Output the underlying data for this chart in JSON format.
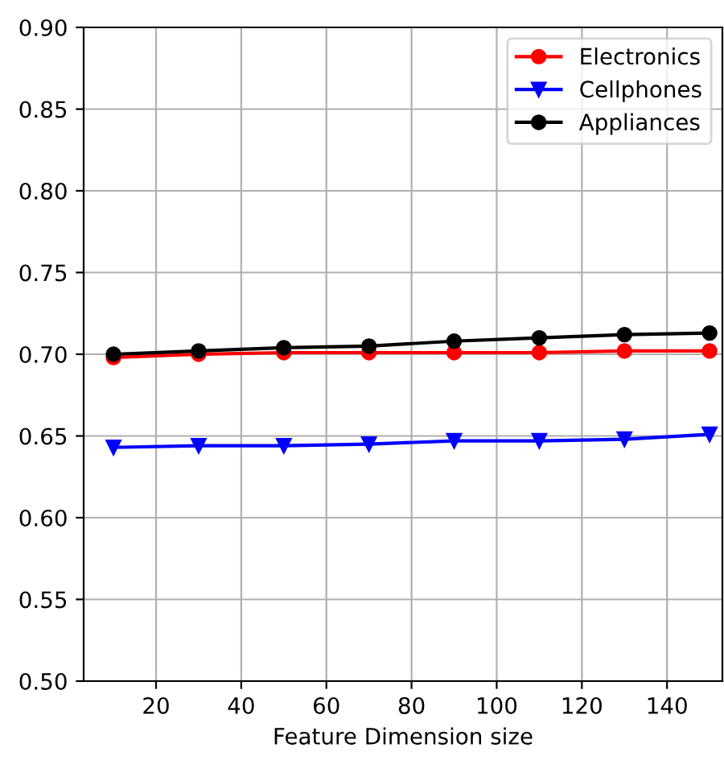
{
  "chart_data": {
    "type": "line",
    "xlabel": "Feature Dimension size",
    "x": [
      10,
      30,
      50,
      70,
      90,
      110,
      130,
      150
    ],
    "series": [
      {
        "name": "Electronics",
        "color": "#ff0000",
        "marker": "circle",
        "values": [
          0.698,
          0.7,
          0.701,
          0.701,
          0.701,
          0.701,
          0.702,
          0.702
        ]
      },
      {
        "name": "Cellphones",
        "color": "#0000ff",
        "marker": "triangle",
        "values": [
          0.643,
          0.644,
          0.644,
          0.645,
          0.647,
          0.647,
          0.648,
          0.651
        ]
      },
      {
        "name": "Appliances",
        "color": "#000000",
        "marker": "circle",
        "values": [
          0.7,
          0.702,
          0.704,
          0.705,
          0.708,
          0.71,
          0.712,
          0.713
        ]
      }
    ],
    "xlim": [
      3,
      153
    ],
    "xticks": [
      20,
      40,
      60,
      80,
      100,
      120,
      140
    ],
    "ylim": [
      0.5,
      0.9
    ],
    "yticks": [
      {
        "value": 0.5,
        "label": "0.50"
      },
      {
        "value": 0.55,
        "label": "0.55"
      },
      {
        "value": 0.6,
        "label": "0.60"
      },
      {
        "value": 0.65,
        "label": "0.65"
      },
      {
        "value": 0.7,
        "label": "0.70"
      },
      {
        "value": 0.75,
        "label": "0.75"
      },
      {
        "value": 0.8,
        "label": "0.80"
      },
      {
        "value": 0.85,
        "label": "0.85"
      },
      {
        "value": 0.9,
        "label": "0.90"
      }
    ],
    "grid": true,
    "legend": "top right"
  }
}
